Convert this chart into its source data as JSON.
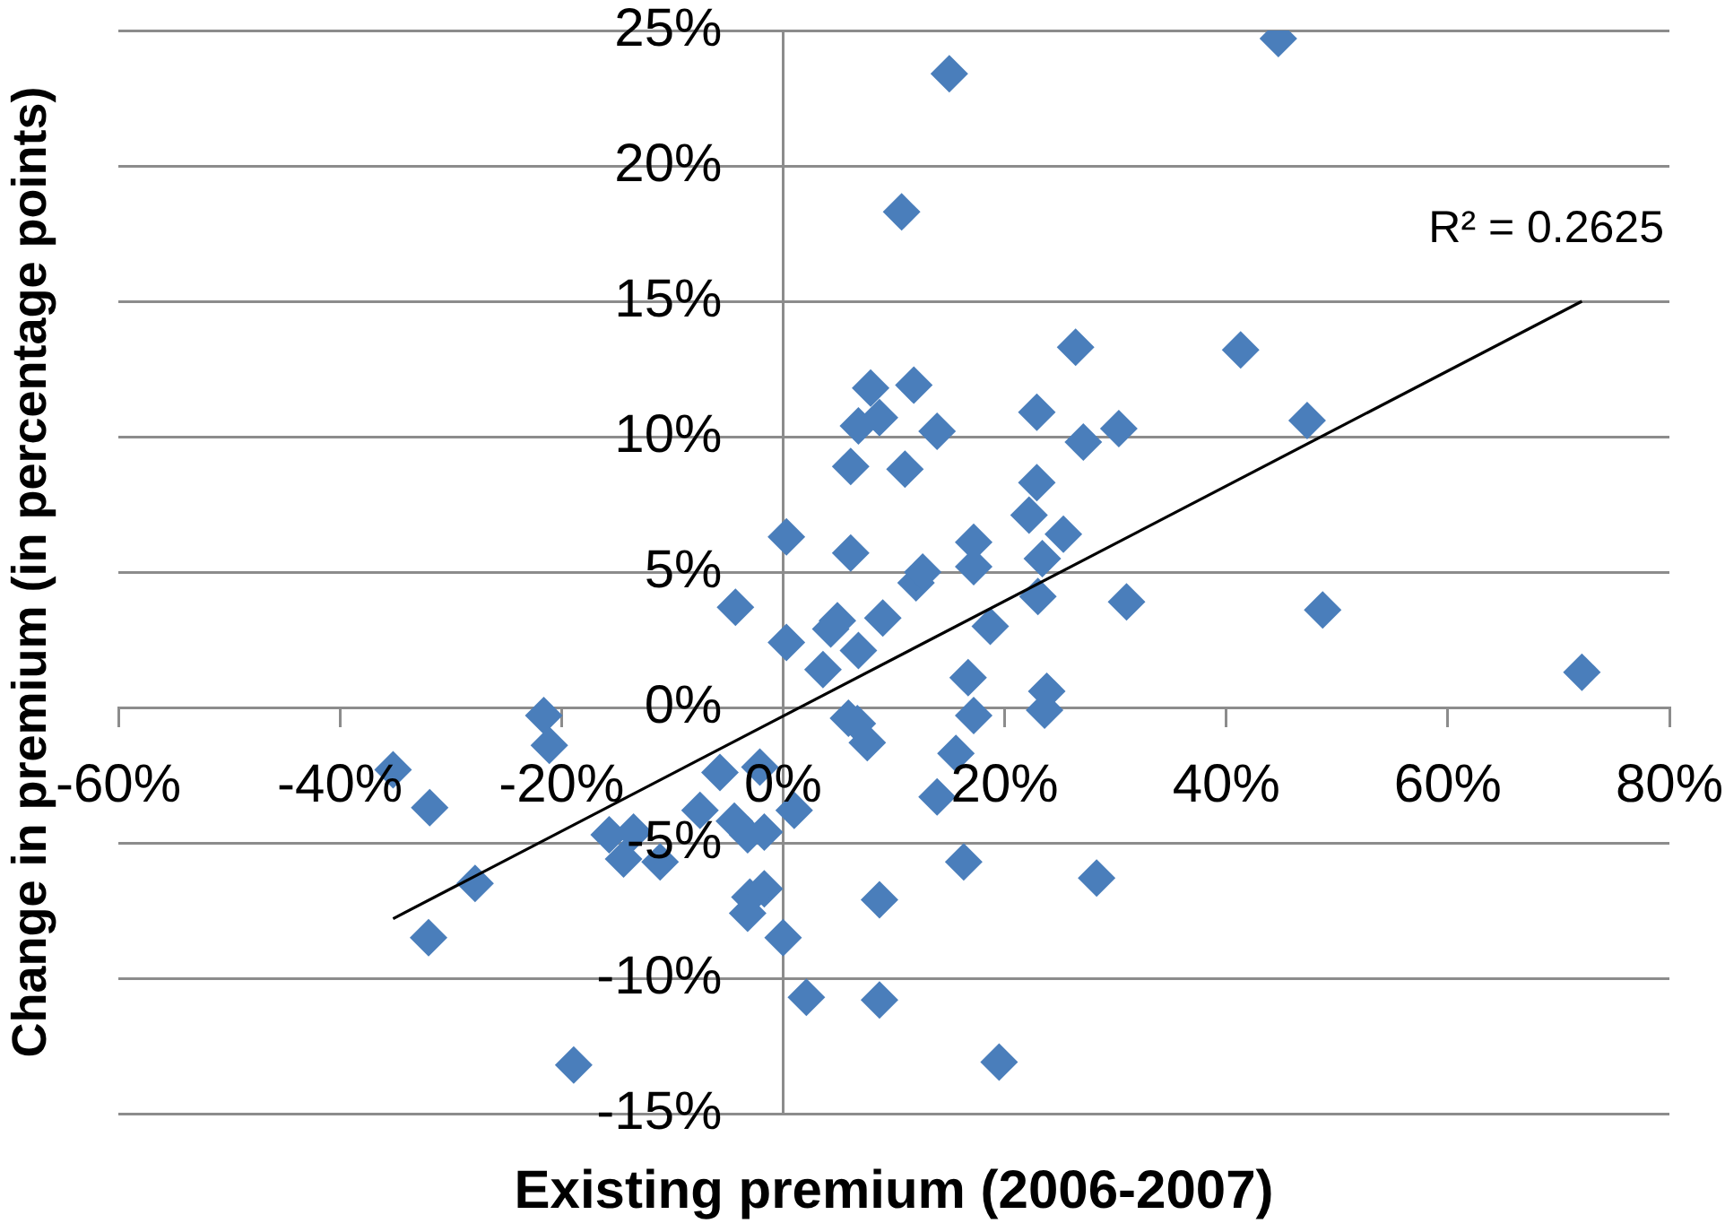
{
  "chart_data": {
    "type": "scatter",
    "xlabel": "Existing premium (2006-2007)",
    "ylabel": "Change in premium (in percentage points)",
    "xlim": [
      -60,
      80
    ],
    "xticks": [
      {
        "value": -60,
        "label": "-60%"
      },
      {
        "value": -40,
        "label": "-40%"
      },
      {
        "value": -20,
        "label": "-20%"
      },
      {
        "value": 0,
        "label": "0%"
      },
      {
        "value": 20,
        "label": "20%"
      },
      {
        "value": 40,
        "label": "40%"
      },
      {
        "value": 60,
        "label": "60%"
      },
      {
        "value": 80,
        "label": "80%"
      }
    ],
    "ylim": [
      -15,
      25
    ],
    "yticks": [
      {
        "value": -15,
        "label": "-15%"
      },
      {
        "value": -10,
        "label": "-10%"
      },
      {
        "value": -5,
        "label": "-5%"
      },
      {
        "value": 0,
        "label": "0%"
      },
      {
        "value": 5,
        "label": "5%"
      },
      {
        "value": 10,
        "label": "10%"
      },
      {
        "value": 15,
        "label": "15%"
      },
      {
        "value": 20,
        "label": "20%"
      },
      {
        "value": 25,
        "label": "25%"
      }
    ],
    "grid": "y",
    "marker": "diamond",
    "legend": false,
    "annotations": [
      "R² = 0.2625"
    ],
    "series": [
      {
        "color": "#4a7ebb",
        "x": [
          44.7,
          15.0,
          10.7,
          26.4,
          41.3,
          7.9,
          11.8,
          6.8,
          8.7,
          13.9,
          22.9,
          27.1,
          30.3,
          47.3,
          6.1,
          11.0,
          22.9,
          22.2,
          0.3,
          6.1,
          17.2,
          23.4,
          25.3,
          17.2,
          12.0,
          12.6,
          23.0,
          31.0,
          -4.3,
          0.3,
          3.6,
          4.3,
          4.9,
          6.8,
          9.0,
          18.7,
          16.7,
          17.2,
          23.8,
          23.6,
          5.9,
          6.7,
          7.6,
          15.6,
          13.9,
          16.3,
          28.3,
          8.7,
          0.0,
          2.1,
          8.7,
          19.5,
          48.7,
          72.1,
          -5.7,
          -2.1,
          -7.5,
          -4.4,
          -3.2,
          -1.7,
          1.0,
          -11.1,
          -1.7,
          -3.0,
          -3.2,
          -35.2,
          -31.9,
          -21.6,
          -21.1,
          -27.8,
          -32.0,
          -18.9,
          -15.7,
          -13.5,
          -14.4
        ],
        "values": [
          24.7,
          23.4,
          18.3,
          13.3,
          13.2,
          11.8,
          11.9,
          10.4,
          10.7,
          10.2,
          10.9,
          9.8,
          10.3,
          10.6,
          8.9,
          8.8,
          8.3,
          7.1,
          6.3,
          5.7,
          6.1,
          5.5,
          6.4,
          5.2,
          4.6,
          5.0,
          4.1,
          3.9,
          3.7,
          2.4,
          1.4,
          2.9,
          3.2,
          2.1,
          3.3,
          3.0,
          1.1,
          -0.3,
          0.6,
          -0.1,
          -0.4,
          -0.6,
          -1.3,
          -1.7,
          -3.3,
          -5.7,
          -6.3,
          -7.1,
          -8.5,
          -10.7,
          -10.8,
          -13.1,
          3.6,
          1.3,
          -2.4,
          -2.2,
          -3.8,
          -4.2,
          -4.7,
          -4.6,
          -3.8,
          -5.7,
          -6.7,
          -7.0,
          -7.6,
          -2.3,
          -3.7,
          -0.3,
          -1.4,
          -6.5,
          -8.5,
          -13.2,
          -4.7,
          -4.6,
          -5.6
        ]
      },
      {
        "type": "line",
        "color": "#000000",
        "marker": "none",
        "x": [
          -35.2,
          72.1
        ],
        "values": [
          -7.8,
          15.0
        ]
      }
    ]
  }
}
